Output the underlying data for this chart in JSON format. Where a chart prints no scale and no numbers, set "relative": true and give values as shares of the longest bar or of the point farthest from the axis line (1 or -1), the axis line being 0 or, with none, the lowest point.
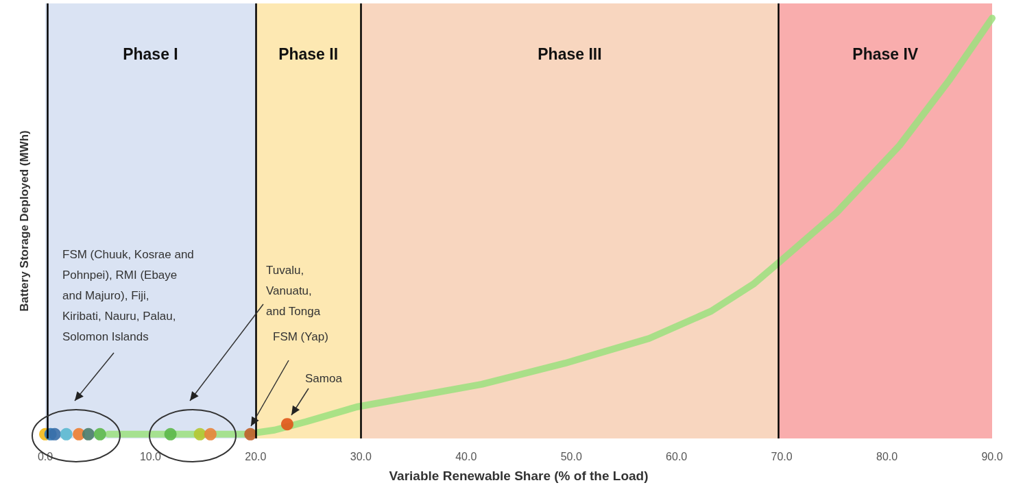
{
  "chart_data": {
    "type": "line",
    "relative": true,
    "xlabel": "Variable Renewable Share (% of the Load)",
    "ylabel": "Battery Storage Deployed (MWh)",
    "xlim": [
      0,
      90
    ],
    "xticks": [
      {
        "value": 0,
        "label": "0.0"
      },
      {
        "value": 10,
        "label": "10.0"
      },
      {
        "value": 20,
        "label": "20.0"
      },
      {
        "value": 30,
        "label": "30.0"
      },
      {
        "value": 40,
        "label": "40.0"
      },
      {
        "value": 50,
        "label": "50.0"
      },
      {
        "value": 60,
        "label": "60.0"
      },
      {
        "value": 70,
        "label": "70.0"
      },
      {
        "value": 80,
        "label": "80.0"
      },
      {
        "value": 90,
        "label": "90.0"
      }
    ],
    "grid": false,
    "marker": "none",
    "series": [
      {
        "color": "#9be07e",
        "x": [
          6,
          10,
          19,
          21.8,
          24.8,
          29.6,
          41.5,
          49.4,
          57.4,
          63.3,
          67.3,
          69.7,
          75.2,
          81.2,
          86,
          90
        ],
        "values": [
          0.01,
          0.01,
          0.01,
          0.02,
          0.04,
          0.075,
          0.129,
          0.179,
          0.238,
          0.303,
          0.367,
          0.418,
          0.537,
          0.697,
          0.855,
          1
        ]
      },
      {
        "type": "scatter",
        "marker": "circle",
        "x": [
          0,
          0.5,
          0.9,
          2,
          3.2,
          4.1,
          5.2,
          11.9,
          14.7,
          15.7,
          19.5,
          23
        ],
        "values": [
          0.01,
          0.01,
          0.01,
          0.01,
          0.01,
          0.01,
          0.01,
          0.01,
          0.01,
          0.01,
          0.01,
          0.034
        ],
        "colors": [
          "#f2b816",
          "#2e75b6",
          "#3a6fa8",
          "#5bb8d0",
          "#ed7d31",
          "#4a7c6a",
          "#5cb84a",
          "#5cb84a",
          "#b5c832",
          "#e8843a",
          "#c0602a",
          "#e0561a"
        ]
      }
    ],
    "bands": [
      {
        "axis": "x",
        "from": 0,
        "to": 20,
        "label": "Phase I",
        "color": "#dae3f3"
      },
      {
        "axis": "x",
        "from": 20,
        "to": 30,
        "label": "Phase II",
        "color": "#fde8b2"
      },
      {
        "axis": "x",
        "from": 30,
        "to": 69.7,
        "label": "Phase III",
        "color": "#f8d6bf"
      },
      {
        "axis": "x",
        "from": 69.7,
        "to": 90,
        "label": "Phase IV",
        "color": "#f9adad"
      }
    ],
    "ref_lines": [
      {
        "axis": "x",
        "value": 0.2,
        "color": "#000000"
      },
      {
        "axis": "x",
        "value": 20,
        "color": "#000000"
      },
      {
        "axis": "x",
        "value": 30,
        "color": "#000000"
      },
      {
        "axis": "x",
        "value": 69.7,
        "color": "#000000"
      }
    ],
    "annotations": [
      "FSM (Chuuk, Kosrae and\nPohnpei), RMI (Ebaye\nand Majuro), Fiji,\nKiribati, Nauru, Palau,\nSolomon Islands",
      "Tuvalu,\nVanuatu,\nand Tonga",
      "FSM (Yap)",
      "Samoa"
    ]
  }
}
